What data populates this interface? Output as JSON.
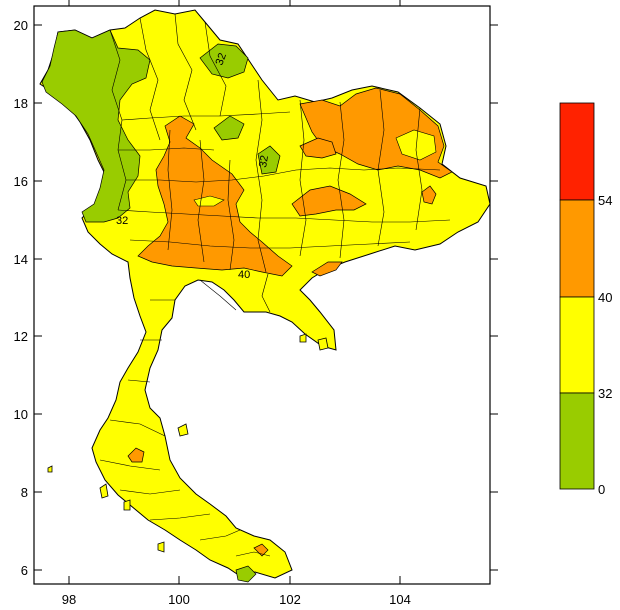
{
  "map": {
    "x_ticks": [
      "98",
      "100",
      "102",
      "104"
    ],
    "y_ticks": [
      "6",
      "8",
      "10",
      "12",
      "14",
      "16",
      "18",
      "20"
    ],
    "contour_labels": [
      "32",
      "32",
      "32",
      "40"
    ],
    "colors": {
      "green": "#99cc00",
      "yellow": "#ffff00",
      "orange": "#ff9900",
      "red": "#ff2200",
      "border": "#000000"
    }
  },
  "legend": {
    "levels": [
      "54",
      "40",
      "32",
      "0"
    ]
  }
}
